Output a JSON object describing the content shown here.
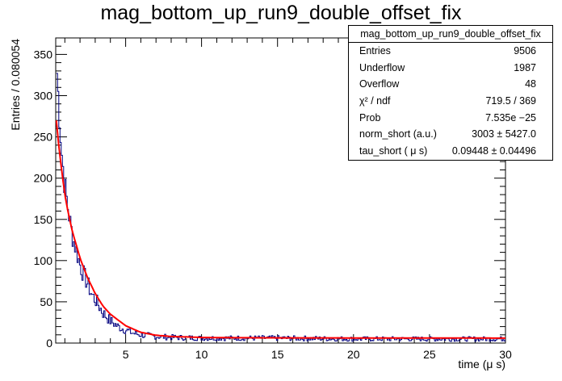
{
  "chart_data": {
    "type": "line",
    "title": "mag_bottom_up_run9_double_offset_fix",
    "xlabel": "time (μ s)",
    "ylabel": "Entries / 0.080054",
    "xlim": [
      0.4,
      30
    ],
    "ylim": [
      0,
      370
    ],
    "x_ticks": [
      5,
      10,
      15,
      20,
      25,
      30
    ],
    "y_ticks": [
      0,
      50,
      100,
      150,
      200,
      250,
      300,
      350
    ],
    "x_tick_labels": [
      "5",
      "10",
      "15",
      "20",
      "25",
      "30"
    ],
    "y_tick_labels": [
      "0",
      "50",
      "100",
      "150",
      "200",
      "250",
      "300",
      "350"
    ],
    "bin_width": 0.080054,
    "series": [
      {
        "kind": "histogram",
        "color": "#00007f",
        "x": [
          0.44,
          0.6,
          0.8,
          1.0,
          1.2,
          1.4,
          1.6,
          1.8,
          2.0,
          2.2,
          2.5,
          2.8,
          3.1,
          3.5,
          4.0,
          4.5,
          5.0,
          5.5,
          6.0,
          7.0,
          8.0,
          10.0,
          12.0,
          15.0,
          20.0,
          25.0,
          30.0
        ],
        "y": [
          340,
          290,
          230,
          190,
          165,
          140,
          123,
          110,
          95,
          85,
          72,
          58,
          50,
          37,
          27,
          20,
          16,
          12,
          10,
          8,
          7,
          6,
          6,
          6,
          5,
          5,
          5
        ]
      },
      {
        "kind": "fit",
        "color": "#ff0000",
        "x": [
          0.44,
          0.6,
          0.8,
          1.0,
          1.2,
          1.5,
          2.0,
          2.5,
          3.0,
          3.5,
          4.0,
          5.0,
          6.0,
          7.0,
          8.0,
          10.0,
          12.0,
          15.0,
          20.0,
          25.0,
          30.0
        ],
        "y": [
          270,
          240,
          208,
          180,
          160,
          135,
          103,
          79,
          60,
          45,
          35,
          21,
          13,
          9.5,
          8,
          6.8,
          6.5,
          6.3,
          6.2,
          6.1,
          6.0
        ]
      }
    ],
    "grid": false,
    "legend_placement": "top-right"
  },
  "stats_box": {
    "name": "mag_bottom_up_run9_double_offset_fix",
    "rows": [
      {
        "key": "Entries",
        "value": "9506"
      },
      {
        "key": "Underflow",
        "value": "1987"
      },
      {
        "key": "Overflow",
        "value": "48"
      },
      {
        "key": "χ² / ndf",
        "value": "719.5 / 369"
      },
      {
        "key": "Prob",
        "value": "7.535e −25"
      },
      {
        "key": "norm_short (a.u.)",
        "value": "3003 ± 5427.0"
      },
      {
        "key": "tau_short ( μ s)",
        "value": "0.09448 ± 0.04496"
      }
    ]
  }
}
